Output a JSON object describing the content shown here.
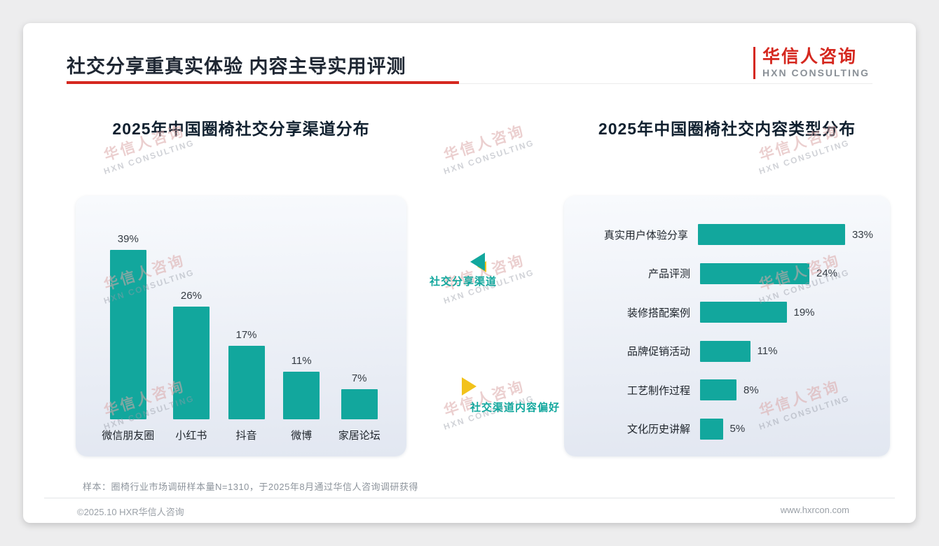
{
  "page": {
    "title": "社交分享重真实体验 内容主导实用评测",
    "sample_note": "样本：圈椅行业市场调研样本量N=1310，于2025年8月通过华信人咨询调研获得",
    "footer_left": "©2025.10 HXR华信人咨询",
    "footer_right": "www.hxrcon.com"
  },
  "logo": {
    "name_cn": "华信人咨询",
    "name_en": "HXN CONSULTING"
  },
  "watermark": {
    "line1": "华信人咨询",
    "line2": "HXN CONSULTING"
  },
  "annotations": {
    "top": "社交分享渠道",
    "bottom": "社交渠道内容偏好"
  },
  "colors": {
    "teal": "#12A79D",
    "red": "#D5281F",
    "yellow": "#F2C21B"
  },
  "chart_data": [
    {
      "type": "bar",
      "orientation": "vertical",
      "title": "2025年中国圈椅社交分享渠道分布",
      "categories": [
        "微信朋友圈",
        "小红书",
        "抖音",
        "微博",
        "家居论坛"
      ],
      "values": [
        39,
        26,
        17,
        11,
        7
      ],
      "unit": "%",
      "ylim": [
        0,
        40
      ],
      "grid": false,
      "bar_color": "#12A79D"
    },
    {
      "type": "bar",
      "orientation": "horizontal",
      "title": "2025年中国圈椅社交内容类型分布",
      "categories": [
        "真实用户体验分享",
        "产品评测",
        "装修搭配案例",
        "品牌促销活动",
        "工艺制作过程",
        "文化历史讲解"
      ],
      "values": [
        33,
        24,
        19,
        11,
        8,
        5
      ],
      "unit": "%",
      "xlim": [
        0,
        35
      ],
      "grid": false,
      "bar_color": "#12A79D"
    }
  ]
}
